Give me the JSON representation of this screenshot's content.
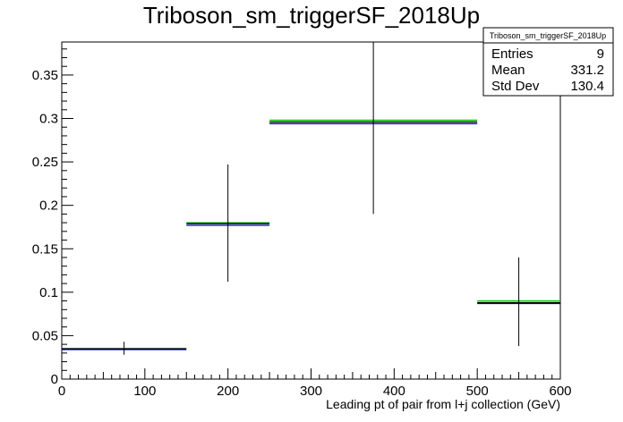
{
  "chart_data": {
    "type": "histogram",
    "title": "Triboson_sm_triggerSF_2018Up",
    "xlabel": "Leading pt of pair from l+j collection (GeV)",
    "ylabel": "",
    "xlim": [
      0,
      600
    ],
    "ylim": [
      0,
      0.388
    ],
    "xticks": [
      0,
      100,
      200,
      300,
      400,
      500,
      600
    ],
    "xtick_labels": [
      "0",
      "100",
      "200",
      "300",
      "400",
      "500",
      "600"
    ],
    "yticks": [
      0,
      0.05,
      0.1,
      0.15,
      0.2,
      0.25,
      0.3,
      0.35
    ],
    "ytick_labels": [
      "0",
      "0.05",
      "0.1",
      "0.15",
      "0.2",
      "0.25",
      "0.3",
      "0.35"
    ],
    "grid": false,
    "bins": [
      {
        "x_low": 0,
        "x_high": 150,
        "x_center": 75,
        "value": 0.035,
        "err_low": 0.028,
        "err_high": 0.043
      },
      {
        "x_low": 150,
        "x_high": 250,
        "x_center": 200,
        "value": 0.179,
        "err_low": 0.112,
        "err_high": 0.247
      },
      {
        "x_low": 250,
        "x_high": 500,
        "x_center": 375,
        "value": 0.296,
        "err_low": 0.19,
        "err_high": 0.388
      },
      {
        "x_low": 500,
        "x_high": 600,
        "x_center": 550,
        "value": 0.088,
        "err_low": 0.038,
        "err_high": 0.14
      }
    ],
    "series": [
      {
        "values": [
          0.035,
          0.179,
          0.296,
          0.088
        ],
        "color": "#000000"
      },
      {
        "values": [
          0.035,
          0.18,
          0.298,
          0.09
        ],
        "color": "#00cc00"
      },
      {
        "values": [
          0.034,
          0.177,
          0.294,
          0.087
        ],
        "color": "#0000cc"
      }
    ],
    "stats_box": {
      "title": "Triboson_sm_triggerSF_2018Up",
      "rows": [
        {
          "label": "Entries",
          "value": "9"
        },
        {
          "label": "Mean",
          "value": "331.2"
        },
        {
          "label": "Std Dev",
          "value": "130.4"
        }
      ],
      "placement": "top-right"
    }
  }
}
